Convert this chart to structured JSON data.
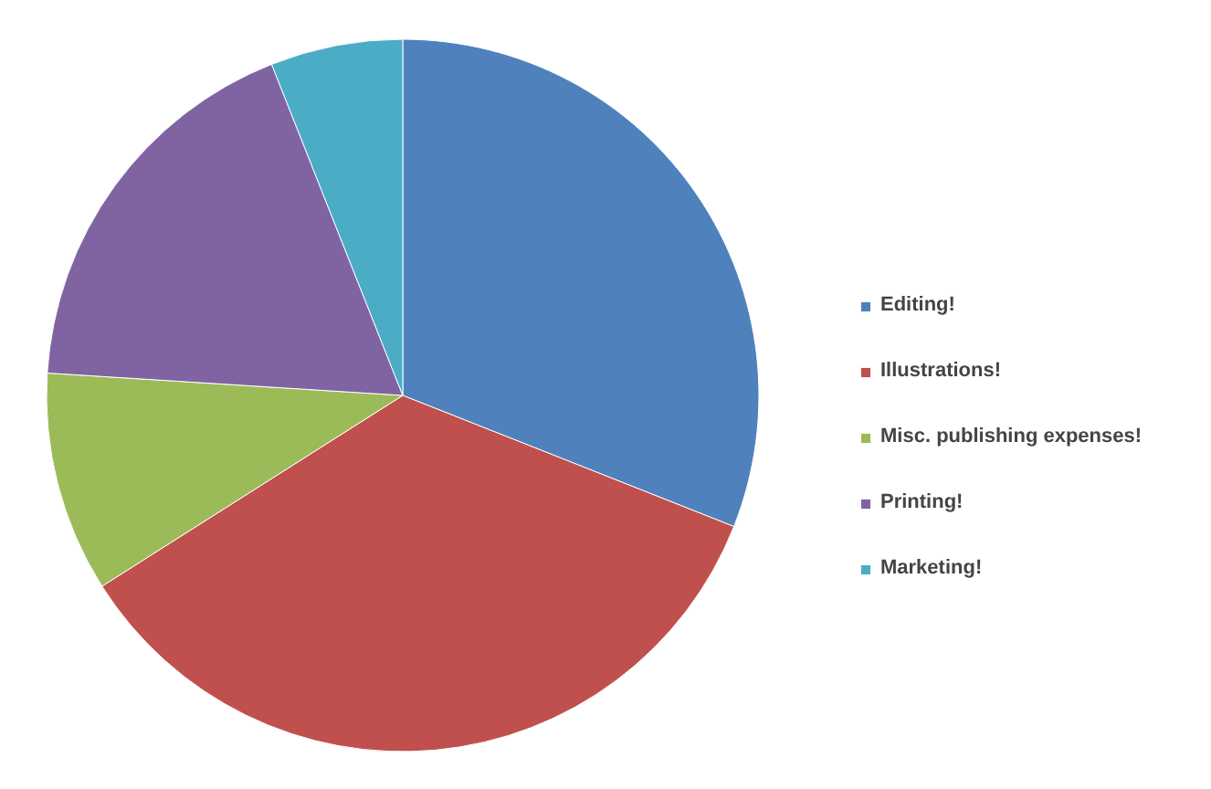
{
  "chart_data": {
    "type": "pie",
    "categories": [
      "Editing!",
      "Illustrations!",
      "Misc. publishing expenses!",
      "Printing!",
      "Marketing!"
    ],
    "values": [
      31,
      35,
      10,
      18,
      6
    ],
    "colors": [
      "#4f81bd",
      "#c0504d",
      "#9bbb59",
      "#8064a2",
      "#4bacc6"
    ],
    "legend": "right"
  }
}
